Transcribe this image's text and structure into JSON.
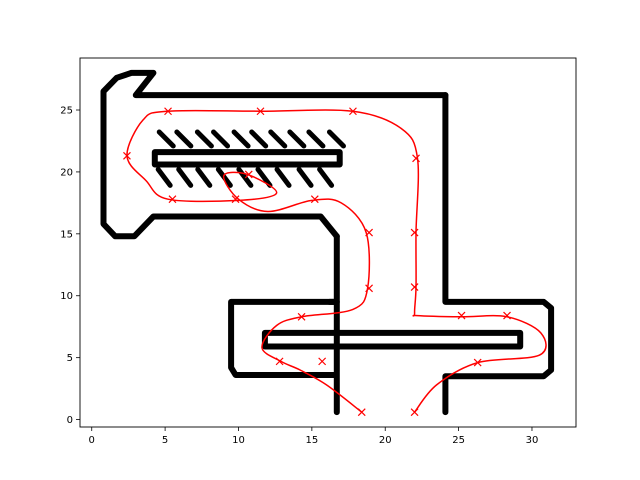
{
  "chart_data": {
    "type": "line",
    "title": "",
    "xlabel": "",
    "ylabel": "",
    "xlim": [
      -0.8,
      33.0
    ],
    "ylim": [
      -0.6,
      29.2
    ],
    "x_ticks": [
      0,
      5,
      10,
      15,
      20,
      25,
      30
    ],
    "y_ticks": [
      0,
      5,
      10,
      15,
      20,
      25
    ],
    "grid": false,
    "legend": "none",
    "colors": {
      "walls": "#000000",
      "path": "#ff0000"
    },
    "series": [
      {
        "type": "line",
        "color": "#000000",
        "x": [
          16.7,
          16.7,
          15.2,
          16.7,
          16.7,
          9.5,
          9.5,
          9.8,
          16.7,
          16.7
        ],
        "y": [
          0.6,
          3.6,
          3.6,
          3.6,
          9.5,
          9.5,
          4.2,
          3.6,
          3.6,
          3.6
        ]
      },
      {
        "type": "line",
        "color": "#000000",
        "x": [
          24.1,
          24.1,
          30.8,
          31.3,
          31.3,
          30.8,
          24.1,
          24.1
        ],
        "y": [
          0.6,
          3.5,
          3.5,
          4.0,
          9.0,
          9.5,
          9.5,
          26.2
        ]
      },
      {
        "type": "line",
        "color": "#000000",
        "x": [
          24.1,
          3.0,
          4.2,
          4.2,
          2.7,
          1.7,
          0.8,
          0.8,
          1.6,
          2.9,
          4.2,
          15.6,
          16.7,
          16.7
        ],
        "y": [
          26.2,
          26.2,
          28.0,
          28.0,
          28.0,
          27.6,
          26.5,
          15.8,
          14.8,
          14.8,
          16.4,
          16.4,
          14.8,
          14.8
        ]
      },
      {
        "type": "line",
        "color": "#000000",
        "x": [
          16.7,
          16.7,
          16.2
        ],
        "y": [
          14.8,
          9.5,
          9.5
        ]
      },
      {
        "type": "line",
        "color": "#000000",
        "x": [
          4.3,
          16.9,
          16.9,
          4.3,
          4.3
        ],
        "y": [
          21.6,
          21.6,
          20.6,
          20.6,
          21.6
        ]
      },
      {
        "type": "line",
        "color": "#000000",
        "x": [
          11.8,
          29.2,
          29.2,
          11.8,
          11.8
        ],
        "y": [
          7.0,
          7.0,
          5.9,
          5.9,
          7.0
        ]
      },
      {
        "type": "scatter",
        "name": "",
        "color": "#ff0000",
        "marker": "x",
        "x": [
          18.4,
          16.0,
          14.2,
          12.9,
          11.6,
          12.6,
          14.3,
          17.8,
          18.8,
          18.7,
          17.0,
          15.0,
          12.0,
          10.0,
          9.0,
          10.6,
          12.6,
          10.0,
          5.2,
          3.7,
          2.4,
          3.5,
          5.2,
          11.5,
          17.8,
          21.1,
          22.2,
          22.1,
          22.1,
          22.0,
          22.2,
          25.2,
          28.3,
          30.6,
          30.5,
          26.3,
          23.5,
          22.0
        ],
        "y": [
          0.6,
          2.8,
          4.0,
          4.7,
          5.8,
          7.6,
          8.3,
          8.9,
          10.6,
          15.1,
          17.5,
          17.7,
          16.8,
          17.8,
          19.7,
          19.8,
          18.3,
          17.7,
          17.8,
          19.3,
          21.3,
          24.2,
          24.9,
          24.9,
          24.9,
          23.5,
          21.1,
          15.1,
          10.7,
          8.6,
          8.4,
          8.3,
          8.3,
          7.0,
          5.2,
          4.6,
          2.8,
          0.6
        ]
      }
    ],
    "path_markers": {
      "x": [
        18.4,
        15.7,
        12.8,
        14.3,
        18.9,
        18.9,
        15.2,
        10.7,
        9.8,
        5.5,
        2.4,
        5.2,
        11.5,
        17.8,
        22.1,
        22.0,
        22.0,
        25.2,
        28.3,
        26.3,
        22.0
      ],
      "y": [
        0.6,
        4.7,
        4.7,
        8.3,
        10.6,
        15.1,
        17.8,
        19.8,
        17.8,
        17.8,
        21.3,
        24.9,
        24.9,
        24.9,
        21.1,
        15.1,
        10.7,
        8.4,
        8.4,
        4.6,
        0.6
      ]
    },
    "teeth": {
      "color": "#000000",
      "upper": [
        [
          4.6,
          22.9
        ],
        [
          5.8,
          22.9
        ],
        [
          7.2,
          22.9
        ],
        [
          8.3,
          22.9
        ],
        [
          9.7,
          22.9
        ],
        [
          10.9,
          22.9
        ],
        [
          12.2,
          22.9
        ],
        [
          13.5,
          22.9
        ],
        [
          14.8,
          22.9
        ],
        [
          16.2,
          22.9
        ]
      ],
      "lower": [
        [
          4.8,
          19.4
        ],
        [
          6.2,
          19.4
        ],
        [
          7.5,
          19.4
        ],
        [
          8.9,
          19.4
        ],
        [
          10.3,
          19.4
        ],
        [
          11.6,
          19.4
        ],
        [
          12.9,
          19.4
        ],
        [
          14.4,
          19.4
        ],
        [
          15.8,
          19.4
        ]
      ]
    }
  }
}
